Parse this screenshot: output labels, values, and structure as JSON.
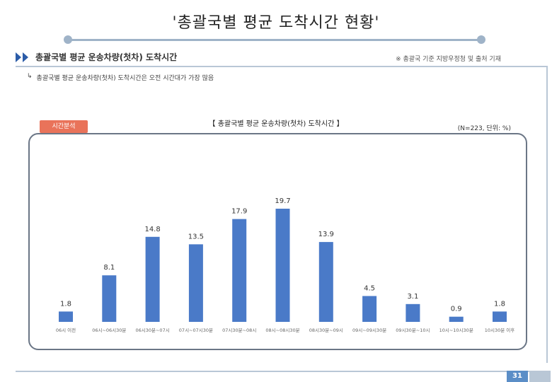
{
  "page": {
    "title": "'총괄국별 평균 도착시간 현황'",
    "subheading": "총괄국별 평균 운송차량(첫차) 도착시간",
    "note": "※ 총괄국 기준 지방우정청 및 출처 기재",
    "summary": "총괄국별 평균 운송차량(첫차) 도착시간은 오전 시간대가 가장 많음",
    "page_number": "31"
  },
  "chart": {
    "tag": "시간분석",
    "title": "【 총괄국별 평균 운송차량(첫차) 도착시간 】",
    "meta": "(N=223, 단위: %)"
  },
  "chart_data": {
    "type": "bar",
    "title": "【 총괄국별 평균 운송차량(첫차) 도착시간 】",
    "categories": [
      "06시 이전",
      "06시~06시30분",
      "06시30분~07시",
      "07시~07시30분",
      "07시30분~08시",
      "08시~08시30분",
      "08시30분~09시",
      "09시~09시30분",
      "09시30분~10시",
      "10시~10시30분",
      "10시30분 이후"
    ],
    "values": [
      1.8,
      8.1,
      14.8,
      13.5,
      17.9,
      19.7,
      13.9,
      4.5,
      3.1,
      0.9,
      1.8
    ],
    "labels": [
      "1.8",
      "8.1",
      "14.8",
      "13.5",
      "17.9",
      "19.7",
      "13.9",
      "4.5",
      "3.1",
      "0.9",
      "1.8"
    ],
    "ylim": [
      0,
      20
    ],
    "xlabel": "",
    "ylabel": "",
    "grid": false,
    "color": "#4a7ac8"
  }
}
